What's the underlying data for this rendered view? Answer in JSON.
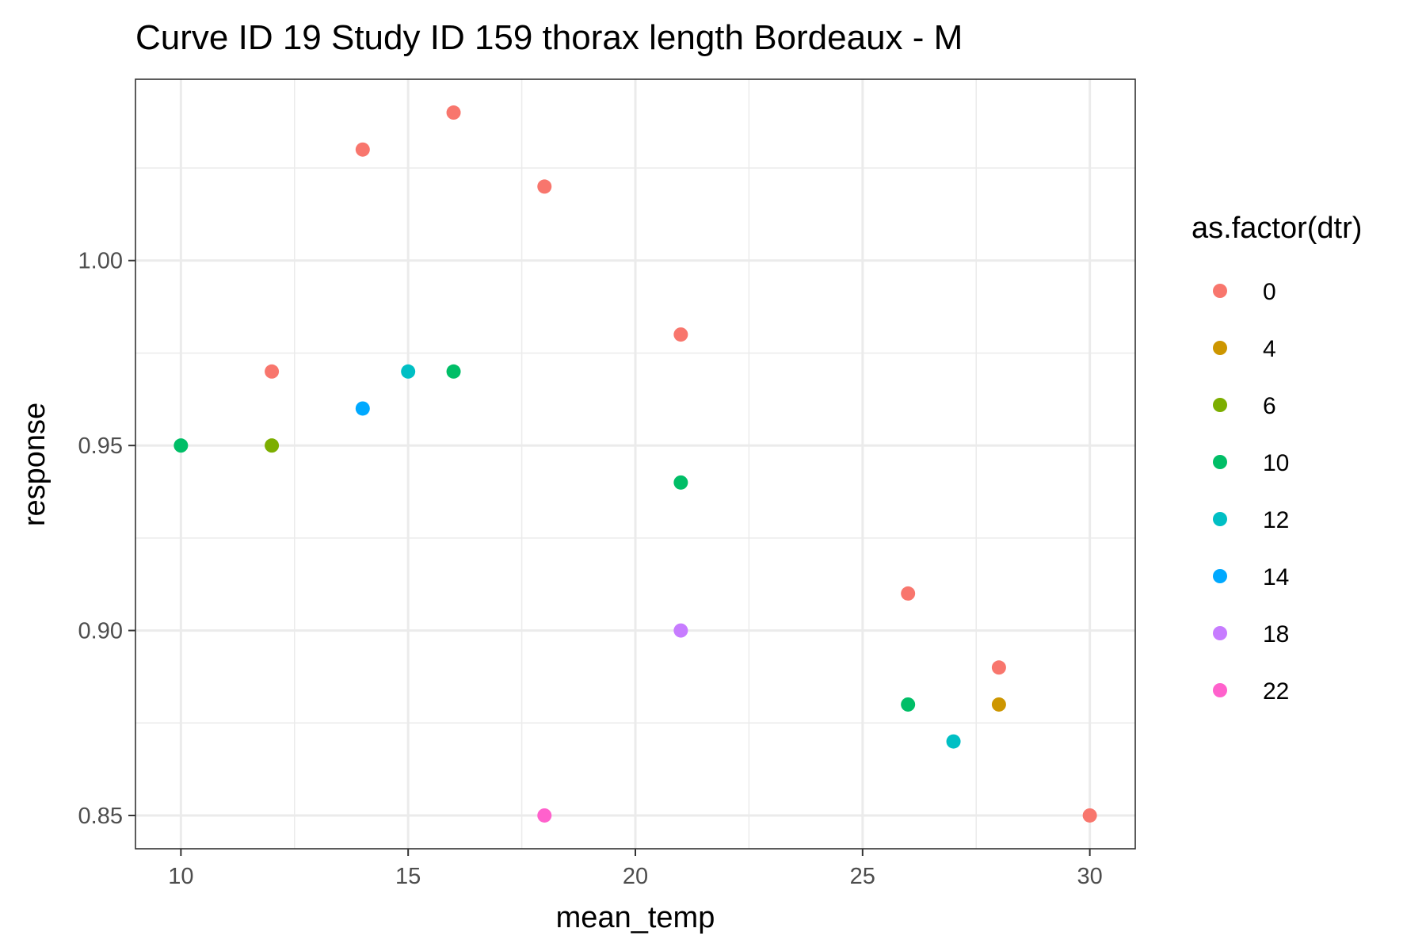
{
  "chart_data": {
    "type": "scatter",
    "title": "Curve ID 19 Study ID 159 thorax length Bordeaux - M",
    "xlabel": "mean_temp",
    "ylabel": "response",
    "xlim": [
      9,
      31
    ],
    "ylim": [
      0.841,
      1.049
    ],
    "x_ticks": [
      10,
      15,
      20,
      25,
      30
    ],
    "x_tick_labels": [
      "10",
      "15",
      "20",
      "25",
      "30"
    ],
    "x_minor": [
      12.5,
      17.5,
      22.5,
      27.5
    ],
    "y_ticks": [
      0.85,
      0.9,
      0.95,
      1.0
    ],
    "y_tick_labels": [
      "0.85",
      "0.90",
      "0.95",
      "1.00"
    ],
    "y_minor": [
      0.875,
      0.925,
      0.975,
      1.025
    ],
    "grid": true,
    "legend": {
      "title": "as.factor(dtr)",
      "position": "right",
      "entries": [
        "0",
        "4",
        "6",
        "10",
        "12",
        "14",
        "18",
        "22"
      ]
    },
    "colors": {
      "0": "#F8766D",
      "4": "#CD9600",
      "6": "#7CAE00",
      "10": "#00BE67",
      "12": "#00BFC4",
      "14": "#00A9FF",
      "18": "#C77CFF",
      "22": "#FF61CC"
    },
    "points": [
      {
        "x": 12,
        "y": 0.97,
        "group": "0"
      },
      {
        "x": 14,
        "y": 1.03,
        "group": "0"
      },
      {
        "x": 16,
        "y": 1.04,
        "group": "0"
      },
      {
        "x": 18,
        "y": 1.02,
        "group": "0"
      },
      {
        "x": 21,
        "y": 0.98,
        "group": "0"
      },
      {
        "x": 26,
        "y": 0.91,
        "group": "0"
      },
      {
        "x": 28,
        "y": 0.89,
        "group": "0"
      },
      {
        "x": 30,
        "y": 0.85,
        "group": "0"
      },
      {
        "x": 28,
        "y": 0.88,
        "group": "4"
      },
      {
        "x": 12,
        "y": 0.95,
        "group": "6"
      },
      {
        "x": 10,
        "y": 0.95,
        "group": "10"
      },
      {
        "x": 16,
        "y": 0.97,
        "group": "10"
      },
      {
        "x": 21,
        "y": 0.94,
        "group": "10"
      },
      {
        "x": 26,
        "y": 0.88,
        "group": "10"
      },
      {
        "x": 15,
        "y": 0.97,
        "group": "12"
      },
      {
        "x": 27,
        "y": 0.87,
        "group": "12"
      },
      {
        "x": 14,
        "y": 0.96,
        "group": "14"
      },
      {
        "x": 21,
        "y": 0.9,
        "group": "18"
      },
      {
        "x": 18,
        "y": 0.85,
        "group": "22"
      }
    ]
  }
}
